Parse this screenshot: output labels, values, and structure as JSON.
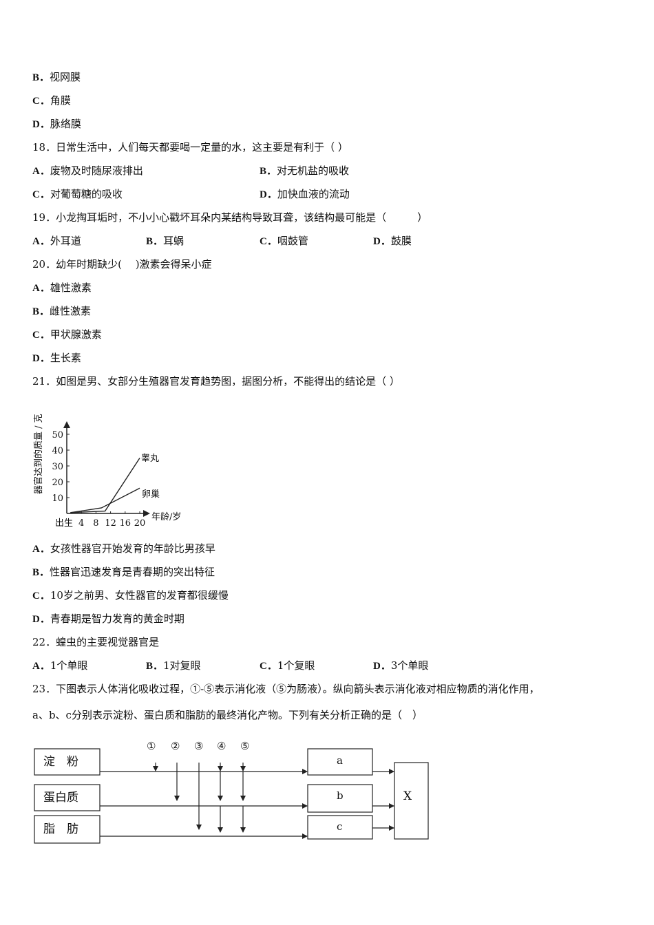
{
  "q17": {
    "options": [
      {
        "letter": "B．",
        "text": "视网膜"
      },
      {
        "letter": "C．",
        "text": "角膜"
      },
      {
        "letter": "D．",
        "text": "脉络膜"
      }
    ]
  },
  "q18": {
    "stem": "18．日常生活中，人们每天都要喝一定量的水，这主要是有利于（ ）",
    "options": [
      {
        "letter": "A．",
        "text": "废物及时随尿液排出"
      },
      {
        "letter": "B．",
        "text": "对无机盐的吸收"
      },
      {
        "letter": "C．",
        "text": "对葡萄糖的吸收"
      },
      {
        "letter": "D．",
        "text": "加快血液的流动"
      }
    ]
  },
  "q19": {
    "stem": "19．小龙掏耳垢时，不小小心戳坏耳朵内某结构导致耳聋，该结构最可能是（　　　）",
    "options": [
      {
        "letter": "A．",
        "text": "外耳道"
      },
      {
        "letter": "B．",
        "text": "耳蜗"
      },
      {
        "letter": "C．",
        "text": "咽鼓管"
      },
      {
        "letter": "D．",
        "text": "鼓膜"
      }
    ]
  },
  "q20": {
    "stem": "20．幼年时期缺少(　  )激素会得呆小症",
    "options": [
      {
        "letter": "A．",
        "text": "雄性激素"
      },
      {
        "letter": "B．",
        "text": "雌性激素"
      },
      {
        "letter": "C．",
        "text": "甲状腺激素"
      },
      {
        "letter": "D．",
        "text": "生长素"
      }
    ]
  },
  "q21": {
    "stem": "21．如图是男、女部分生殖器官发育趋势图，据图分析，不能得出的结论是（ ）",
    "options": [
      {
        "letter": "A．",
        "text": "女孩性器官开始发育的年龄比男孩早"
      },
      {
        "letter": "B．",
        "text": "性器官迅速发育是青春期的突出特征"
      },
      {
        "letter": "C．",
        "text": "10岁之前男、女性器官的发育都很缓慢"
      },
      {
        "letter": "D．",
        "text": "青春期是智力发育的黄金时期"
      }
    ]
  },
  "chart_data": {
    "type": "line",
    "ylabel": "器官达到的质量 / 克",
    "xlabel": "年龄/岁",
    "x_ticks": [
      "出生",
      "4",
      "8",
      "12",
      "16",
      "20"
    ],
    "y_ticks": [
      "10",
      "20",
      "30",
      "40",
      "50"
    ],
    "ylim": [
      0,
      55
    ],
    "xlim": [
      0,
      22
    ],
    "series": [
      {
        "name": "睾丸",
        "points": [
          [
            1,
            0.5
          ],
          [
            10.5,
            1.5
          ],
          [
            20,
            35
          ]
        ]
      },
      {
        "name": "卵巢",
        "points": [
          [
            1,
            0.5
          ],
          [
            9.5,
            3.5
          ],
          [
            20,
            16
          ]
        ]
      }
    ]
  },
  "q22": {
    "stem": "22．蝗虫的主要视觉器官是",
    "options": [
      {
        "letter": "A．",
        "text": "1个单眼"
      },
      {
        "letter": "B．",
        "text": "1对复眼"
      },
      {
        "letter": "C．",
        "text": "1个复眼"
      },
      {
        "letter": "D．",
        "text": "3个单眼"
      }
    ]
  },
  "q23": {
    "stem_line1": "23．下图表示人体消化吸收过程，①-⑤表示消化液（⑤为肠液）。纵向箭头表示消化液对相应物质的消化作用，",
    "stem_line2": "a、b、c分别表示淀粉、蛋白质和脂肪的最终消化产物。下列有关分析正确的是（　）",
    "diagram": {
      "inputs": [
        "淀　粉",
        "蛋白质",
        "脂　肪"
      ],
      "juices": [
        "①",
        "②",
        "③",
        "④",
        "⑤"
      ],
      "products": [
        "a",
        "b",
        "c"
      ],
      "final": "X"
    }
  }
}
